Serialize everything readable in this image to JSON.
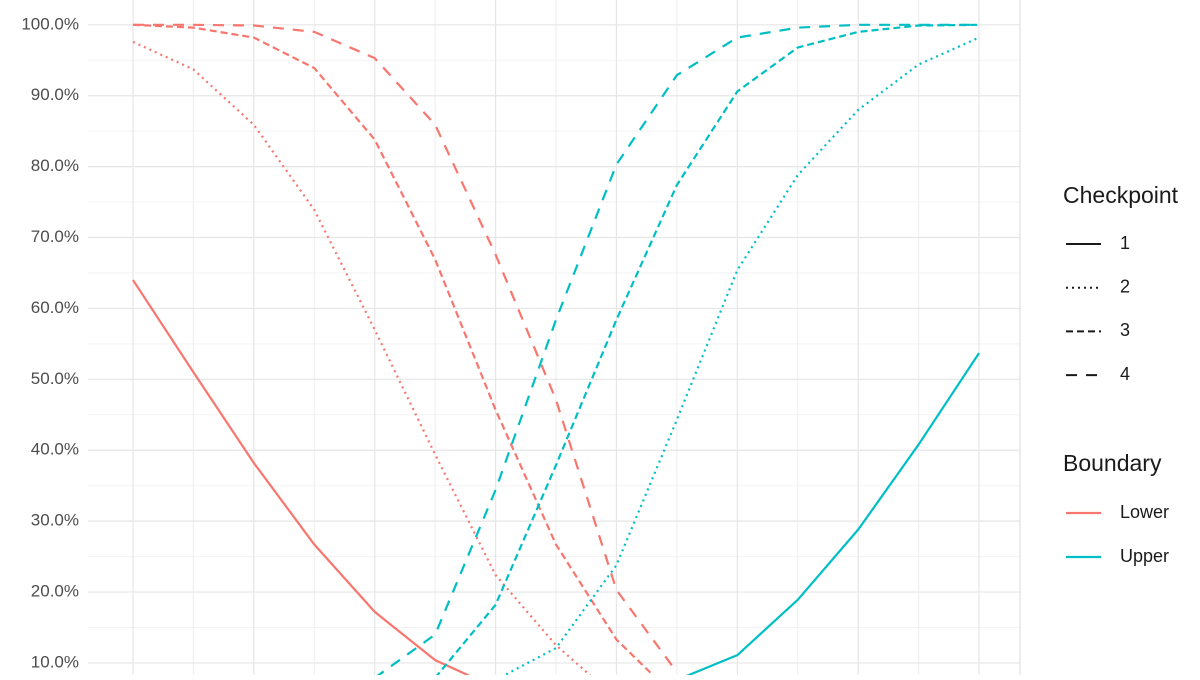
{
  "chart_data": {
    "type": "line",
    "categories": [
      null,
      null,
      null,
      null,
      null,
      null,
      null,
      null,
      null,
      null,
      null,
      null,
      null,
      null,
      null
    ],
    "ylim": [
      8.3,
      103.5
    ],
    "yticks": [
      {
        "value": 10,
        "label": "10.0%"
      },
      {
        "value": 20,
        "label": "20.0%"
      },
      {
        "value": 30,
        "label": "30.0%"
      },
      {
        "value": 40,
        "label": "40.0%"
      },
      {
        "value": 50,
        "label": "50.0%"
      },
      {
        "value": 60,
        "label": "60.0%"
      },
      {
        "value": 70,
        "label": "70.0%"
      },
      {
        "value": 80,
        "label": "80.0%"
      },
      {
        "value": 90,
        "label": "90.0%"
      },
      {
        "value": 100,
        "label": "100.0%"
      }
    ],
    "grid": true,
    "legends": [
      {
        "title": "Checkpoint",
        "items": [
          {
            "label": "1",
            "dash": "none"
          },
          {
            "label": "2",
            "dash": "2,4"
          },
          {
            "label": "3",
            "dash": "7,4"
          },
          {
            "label": "4",
            "dash": "11,9"
          }
        ]
      },
      {
        "title": "Boundary",
        "items": [
          {
            "label": "Lower",
            "color": "#F8766D"
          },
          {
            "label": "Upper",
            "color": "#00BFC4"
          }
        ]
      }
    ],
    "series": [
      {
        "boundary": 0,
        "checkpoint": 0,
        "values": [
          64.0,
          51.0,
          38.2,
          26.7,
          17.2,
          10.4,
          6.5,
          null,
          null,
          null,
          null,
          null,
          null,
          null,
          null
        ]
      },
      {
        "boundary": 0,
        "checkpoint": 1,
        "values": [
          97.6,
          93.7,
          85.9,
          73.9,
          57.0,
          39.4,
          22.4,
          12.5,
          5.0,
          null,
          null,
          null,
          null,
          null,
          null
        ]
      },
      {
        "boundary": 0,
        "checkpoint": 2,
        "values": [
          100,
          99.6,
          98.2,
          93.9,
          83.8,
          66.9,
          45.7,
          26.7,
          13.3,
          5.0,
          null,
          null,
          null,
          null,
          null
        ]
      },
      {
        "boundary": 0,
        "checkpoint": 3,
        "values": [
          100,
          100,
          99.9,
          99.0,
          95.3,
          85.9,
          67.6,
          47.1,
          20.3,
          8.7,
          null,
          null,
          null,
          null,
          null
        ]
      },
      {
        "boundary": 1,
        "checkpoint": 0,
        "values": [
          null,
          null,
          null,
          null,
          null,
          null,
          null,
          null,
          null,
          7.6,
          11.1,
          18.9,
          28.8,
          40.8,
          53.7
        ]
      },
      {
        "boundary": 1,
        "checkpoint": 1,
        "values": [
          null,
          null,
          null,
          null,
          null,
          null,
          7.6,
          12.1,
          23.8,
          44.3,
          65.4,
          78.8,
          88.0,
          94.4,
          98.2
        ]
      },
      {
        "boundary": 1,
        "checkpoint": 2,
        "values": [
          null,
          null,
          null,
          null,
          null,
          7.9,
          18.2,
          37.9,
          58.4,
          77.4,
          90.6,
          96.8,
          99.0,
          99.9,
          100
        ]
      },
      {
        "boundary": 1,
        "checkpoint": 3,
        "values": [
          null,
          null,
          null,
          null,
          7.9,
          14.0,
          34.4,
          58.4,
          80.3,
          92.9,
          98.2,
          99.6,
          100,
          100,
          100
        ]
      }
    ]
  }
}
